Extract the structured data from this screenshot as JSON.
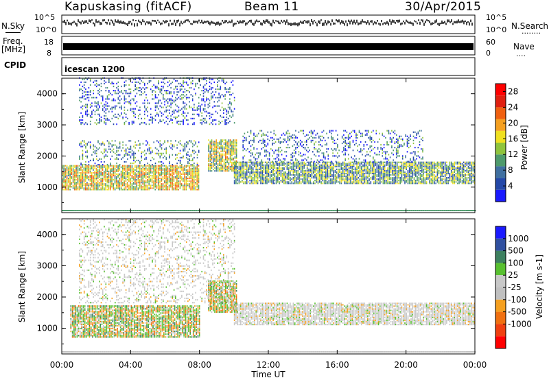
{
  "header": {
    "station": "Kapuskasing (fitACF)",
    "beam": "Beam 11",
    "date": "30/Apr/2015"
  },
  "noise_panel": {
    "left_label": "N.Sky",
    "left_ticks": [
      "10^5",
      "10^0"
    ],
    "right_ticks": [
      "10^5",
      "10^0"
    ],
    "right_label": "N.Search",
    "right_label_dots": "........"
  },
  "freq_panel": {
    "left_label_1": "Freq.",
    "left_label_2": "[MHz]",
    "left_ticks": [
      "18",
      "8"
    ],
    "right_ticks": [
      "60",
      "0"
    ],
    "right_label": "Nave",
    "right_label_dots": "...."
  },
  "cpid": {
    "label": "CPID",
    "value": "icescan 1200"
  },
  "x_axis": {
    "label": "Time UT",
    "ticks": [
      "00:00",
      "04:00",
      "08:00",
      "12:00",
      "16:00",
      "20:00",
      "00:00"
    ]
  },
  "colors": {
    "power_scale": [
      "#1a1aff",
      "#2448a8",
      "#3f6fa0",
      "#4e9a6c",
      "#8fc43c",
      "#f0e020",
      "#f5a020",
      "#f06010",
      "#e02010",
      "#ff0000"
    ],
    "velocity_scale": [
      "#1a1aff",
      "#3050a0",
      "#3d8060",
      "#58c030",
      "#c8c8c8",
      "#c0c0c0",
      "#f5a020",
      "#f07010",
      "#f04010",
      "#ff0000"
    ]
  },
  "chart_data": [
    {
      "type": "heatmap",
      "title": "",
      "ylabel": "Slant Range [km]",
      "xlabel": "Time UT",
      "y_ticks": [
        "1000",
        "2000",
        "3000",
        "4000"
      ],
      "ylim_km": [
        180,
        4500
      ],
      "xlim_hours": [
        0,
        24
      ],
      "colorbar": {
        "label": "Power [dB]",
        "ticks": [
          "4",
          "8",
          "12",
          "16",
          "20",
          "24",
          "28"
        ],
        "range": [
          0,
          30
        ]
      },
      "regions": [
        {
          "t0": 0.0,
          "t1": 8.0,
          "r0": 900,
          "r1": 1700,
          "value": 16
        },
        {
          "t0": 8.5,
          "t1": 10.2,
          "r0": 1500,
          "r1": 2500,
          "value": 14
        },
        {
          "t0": 10.0,
          "t1": 24.0,
          "r0": 1100,
          "r1": 1800,
          "value": 10
        },
        {
          "t0": 1.0,
          "t1": 8.0,
          "r0": 1700,
          "r1": 2500,
          "value": 8
        },
        {
          "t0": 10.5,
          "t1": 21.0,
          "r0": 1800,
          "r1": 2800,
          "value": 6
        },
        {
          "t0": 1.0,
          "t1": 10.0,
          "r0": 3000,
          "r1": 4500,
          "value": 5
        }
      ]
    },
    {
      "type": "heatmap",
      "title": "",
      "ylabel": "Slant Range [km]",
      "xlabel": "Time UT",
      "y_ticks": [
        "1000",
        "2000",
        "3000",
        "4000"
      ],
      "ylim_km": [
        180,
        4500
      ],
      "xlim_hours": [
        0,
        24
      ],
      "colorbar": {
        "label": "Velocity [m s-1]",
        "ticks": [
          "1000",
          "500",
          "100",
          "25",
          "-25",
          "-100",
          "-500",
          "-1000"
        ]
      },
      "regions": [
        {
          "t0": 0.5,
          "t1": 8.0,
          "r0": 700,
          "r1": 1700,
          "value": 0
        },
        {
          "t0": 8.5,
          "t1": 10.2,
          "r0": 1500,
          "r1": 2500,
          "value": -200
        },
        {
          "t0": 10.0,
          "t1": 24.0,
          "r0": 1100,
          "r1": 1800,
          "value": 0
        },
        {
          "t0": 1.0,
          "t1": 10.0,
          "r0": 1800,
          "r1": 4500,
          "value": 0
        }
      ]
    }
  ]
}
